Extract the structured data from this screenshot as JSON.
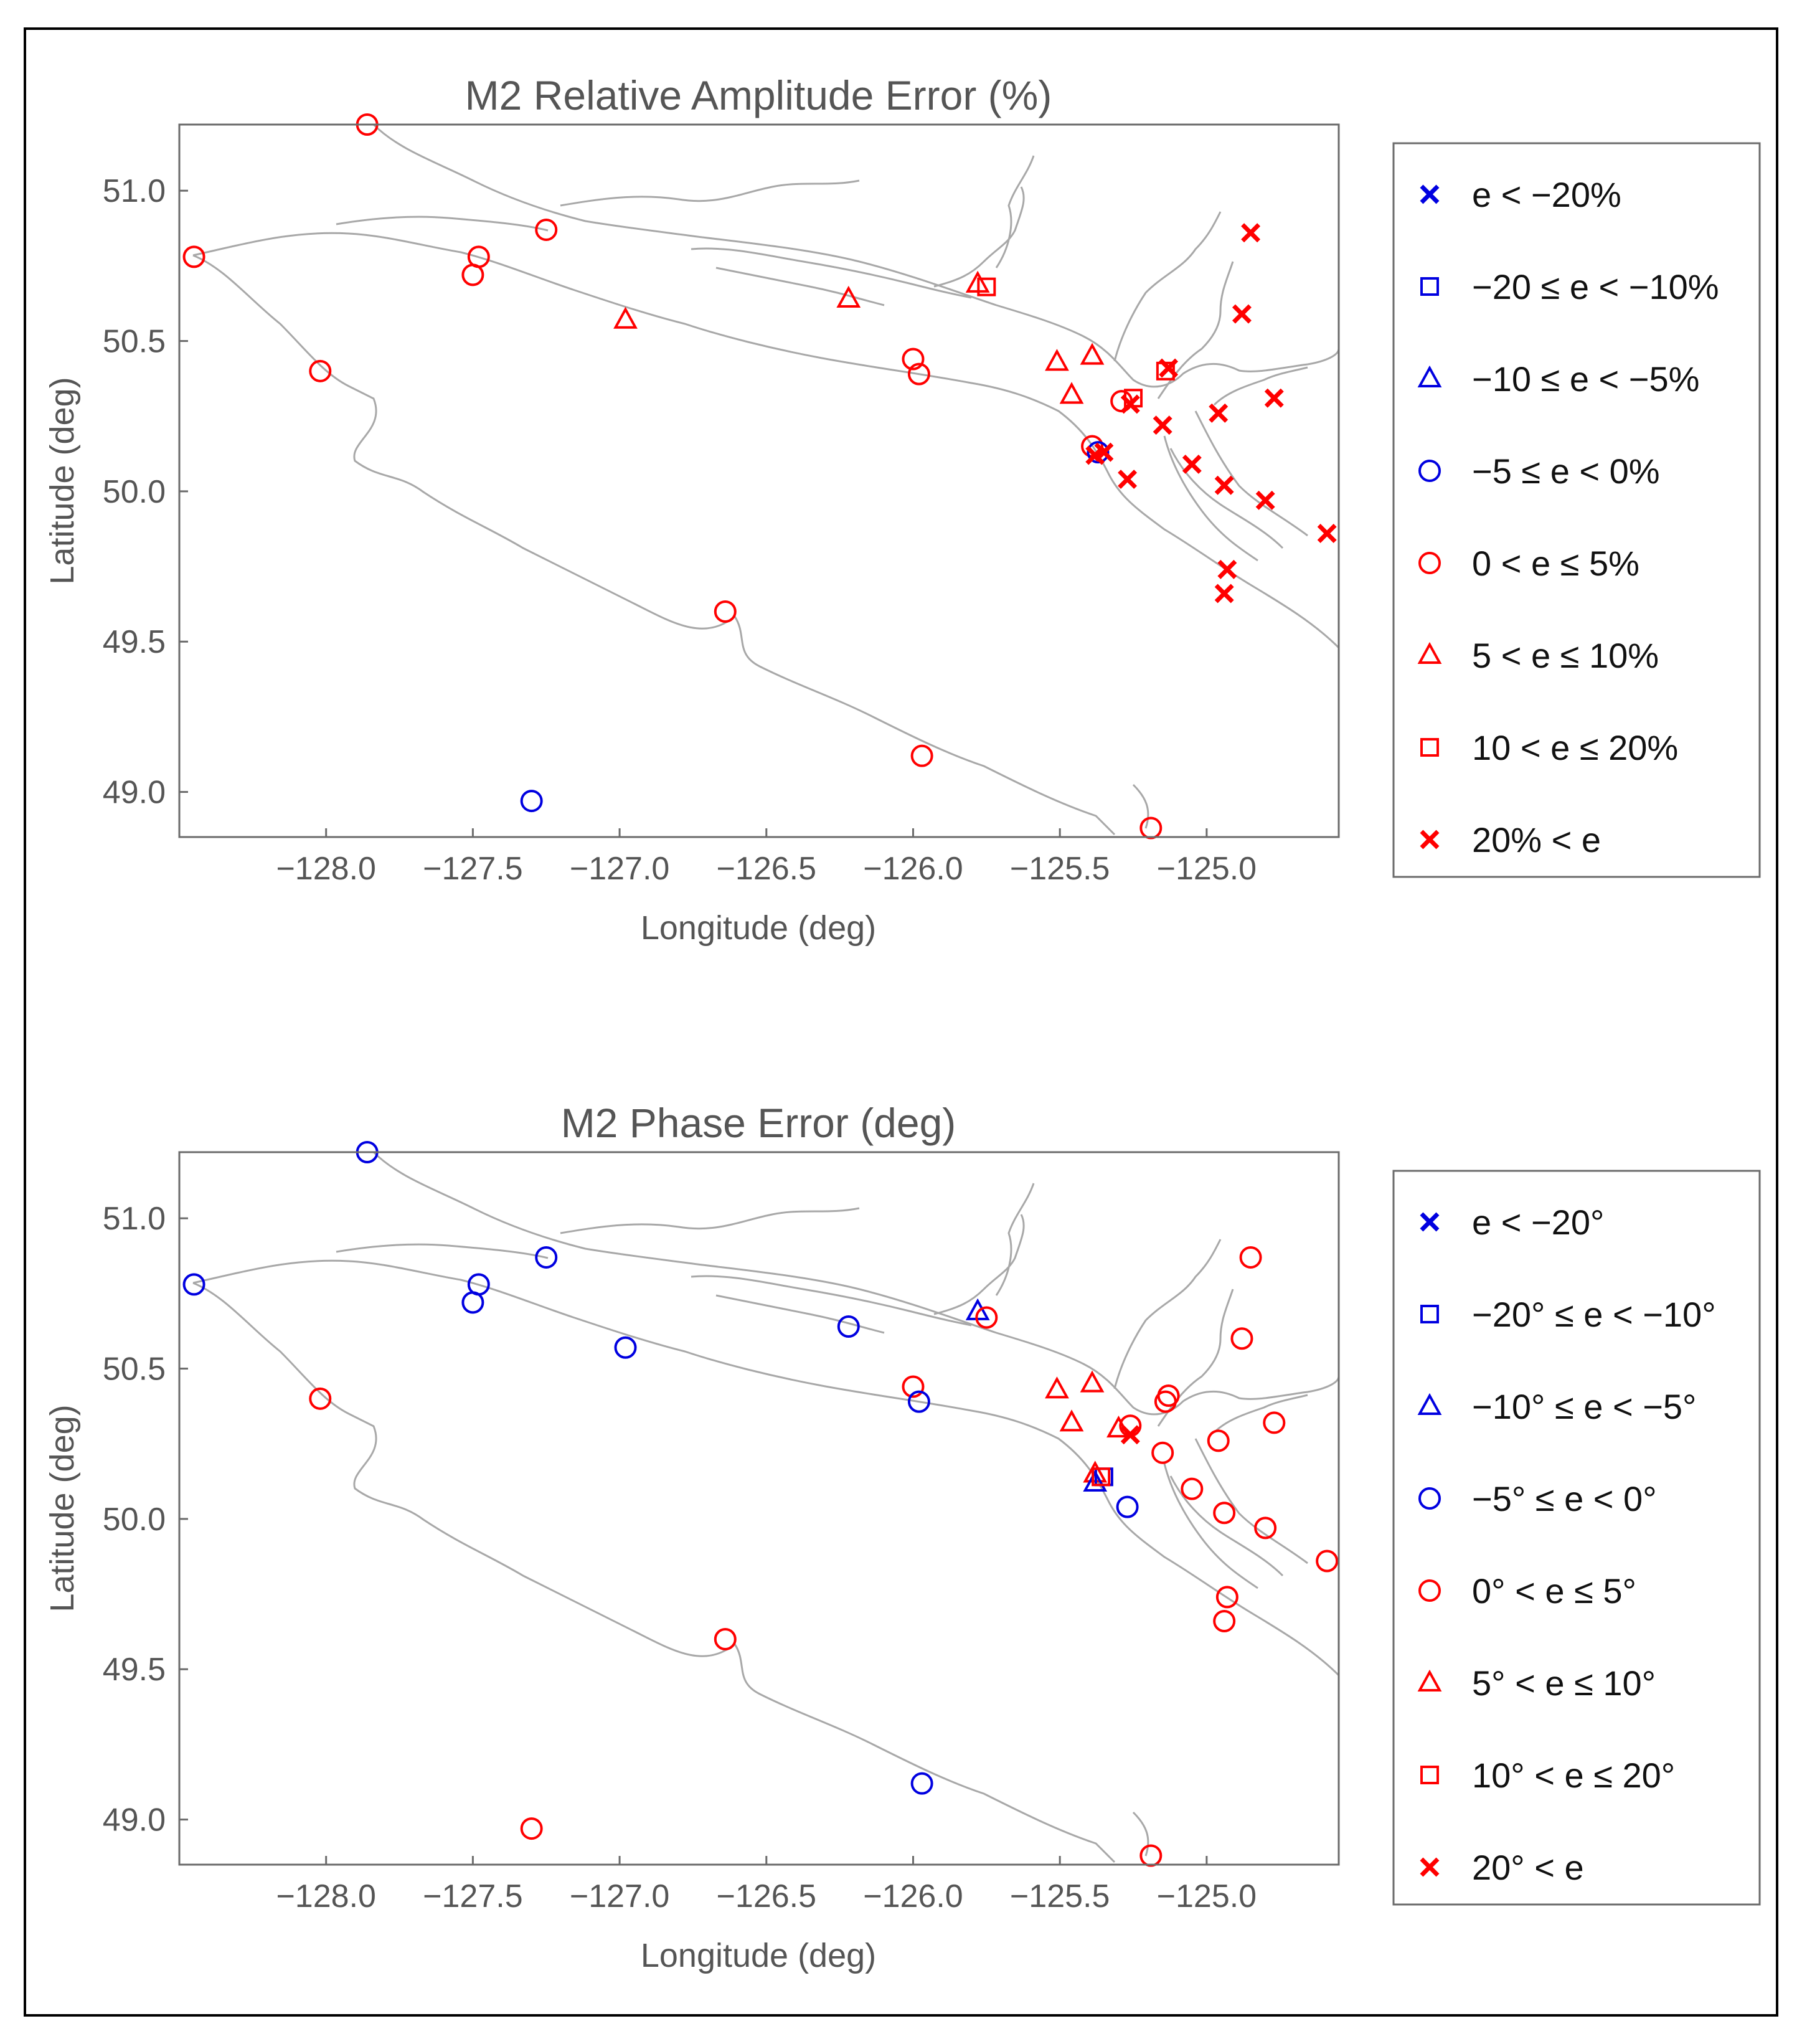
{
  "chart_data": [
    {
      "type": "scatter",
      "title": "M2 Relative Amplitude Error (%)",
      "xlabel": "Longitude (deg)",
      "ylabel": "Latitude (deg)",
      "xlim": [
        -128.5,
        -124.55
      ],
      "ylim": [
        48.85,
        51.22
      ],
      "xticks": [
        -128.0,
        -127.5,
        -127.0,
        -126.5,
        -126.0,
        -125.5,
        -125.0
      ],
      "xtick_labels": [
        "−128.0",
        "−127.5",
        "−127.0",
        "−126.5",
        "−126.0",
        "−125.5",
        "−125.0"
      ],
      "yticks": [
        49.0,
        49.5,
        50.0,
        50.5,
        51.0
      ],
      "ytick_labels": [
        "49.0",
        "49.5",
        "50.0",
        "50.5",
        "51.0"
      ],
      "grid": false,
      "legend_position": "right",
      "legend": [
        {
          "label": "e < −20%",
          "marker": "x",
          "color": "#0000e0"
        },
        {
          "label": "−20 ≤ e < −10%",
          "marker": "square",
          "color": "#0000e0"
        },
        {
          "label": "−10 ≤ e < −5%",
          "marker": "triangle",
          "color": "#0000e0"
        },
        {
          "label": "−5 ≤ e < 0%",
          "marker": "circle",
          "color": "#0000e0"
        },
        {
          "label": "0 < e ≤ 5%",
          "marker": "circle",
          "color": "#ff0000"
        },
        {
          "label": "5 < e ≤ 10%",
          "marker": "triangle",
          "color": "#ff0000"
        },
        {
          "label": "10 < e ≤ 20%",
          "marker": "square",
          "color": "#ff0000"
        },
        {
          "label": "20% < e",
          "marker": "x",
          "color": "#ff0000"
        }
      ],
      "points": [
        {
          "x": -127.86,
          "y": 51.22,
          "marker": "circle",
          "color": "#ff0000"
        },
        {
          "x": -128.45,
          "y": 50.78,
          "marker": "circle",
          "color": "#ff0000"
        },
        {
          "x": -127.5,
          "y": 50.72,
          "marker": "circle",
          "color": "#ff0000"
        },
        {
          "x": -127.48,
          "y": 50.78,
          "marker": "circle",
          "color": "#ff0000"
        },
        {
          "x": -127.25,
          "y": 50.87,
          "marker": "circle",
          "color": "#ff0000"
        },
        {
          "x": -128.02,
          "y": 50.4,
          "marker": "circle",
          "color": "#ff0000"
        },
        {
          "x": -126.98,
          "y": 50.57,
          "marker": "triangle",
          "color": "#ff0000"
        },
        {
          "x": -126.22,
          "y": 50.64,
          "marker": "triangle",
          "color": "#ff0000"
        },
        {
          "x": -125.78,
          "y": 50.69,
          "marker": "triangle",
          "color": "#ff0000"
        },
        {
          "x": -125.75,
          "y": 50.68,
          "marker": "square",
          "color": "#ff0000"
        },
        {
          "x": -126.0,
          "y": 50.44,
          "marker": "circle",
          "color": "#ff0000"
        },
        {
          "x": -125.98,
          "y": 50.39,
          "marker": "circle",
          "color": "#ff0000"
        },
        {
          "x": -125.51,
          "y": 50.43,
          "marker": "triangle",
          "color": "#ff0000"
        },
        {
          "x": -125.39,
          "y": 50.45,
          "marker": "triangle",
          "color": "#ff0000"
        },
        {
          "x": -125.46,
          "y": 50.32,
          "marker": "triangle",
          "color": "#ff0000"
        },
        {
          "x": -125.39,
          "y": 50.15,
          "marker": "circle",
          "color": "#ff0000"
        },
        {
          "x": -125.37,
          "y": 50.13,
          "marker": "circle",
          "color": "#0000e0"
        },
        {
          "x": -125.38,
          "y": 50.12,
          "marker": "x",
          "color": "#ff0000"
        },
        {
          "x": -125.35,
          "y": 50.13,
          "marker": "x",
          "color": "#ff0000"
        },
        {
          "x": -125.29,
          "y": 50.3,
          "marker": "circle",
          "color": "#ff0000"
        },
        {
          "x": -125.25,
          "y": 50.31,
          "marker": "square",
          "color": "#ff0000"
        },
        {
          "x": -125.26,
          "y": 50.29,
          "marker": "x",
          "color": "#ff0000"
        },
        {
          "x": -125.14,
          "y": 50.4,
          "marker": "square",
          "color": "#ff0000"
        },
        {
          "x": -125.13,
          "y": 50.41,
          "marker": "x",
          "color": "#ff0000"
        },
        {
          "x": -125.15,
          "y": 50.22,
          "marker": "x",
          "color": "#ff0000"
        },
        {
          "x": -125.27,
          "y": 50.04,
          "marker": "x",
          "color": "#ff0000"
        },
        {
          "x": -125.05,
          "y": 50.09,
          "marker": "x",
          "color": "#ff0000"
        },
        {
          "x": -124.96,
          "y": 50.26,
          "marker": "x",
          "color": "#ff0000"
        },
        {
          "x": -124.94,
          "y": 50.02,
          "marker": "x",
          "color": "#ff0000"
        },
        {
          "x": -124.88,
          "y": 50.59,
          "marker": "x",
          "color": "#ff0000"
        },
        {
          "x": -124.85,
          "y": 50.86,
          "marker": "x",
          "color": "#ff0000"
        },
        {
          "x": -124.77,
          "y": 50.31,
          "marker": "x",
          "color": "#ff0000"
        },
        {
          "x": -124.8,
          "y": 49.97,
          "marker": "x",
          "color": "#ff0000"
        },
        {
          "x": -124.59,
          "y": 49.86,
          "marker": "x",
          "color": "#ff0000"
        },
        {
          "x": -124.93,
          "y": 49.74,
          "marker": "x",
          "color": "#ff0000"
        },
        {
          "x": -124.94,
          "y": 49.66,
          "marker": "x",
          "color": "#ff0000"
        },
        {
          "x": -126.64,
          "y": 49.6,
          "marker": "circle",
          "color": "#ff0000"
        },
        {
          "x": -125.97,
          "y": 49.12,
          "marker": "circle",
          "color": "#ff0000"
        },
        {
          "x": -127.3,
          "y": 48.97,
          "marker": "circle",
          "color": "#0000e0"
        },
        {
          "x": -125.19,
          "y": 48.88,
          "marker": "circle",
          "color": "#ff0000"
        }
      ]
    },
    {
      "type": "scatter",
      "title": "M2 Phase Error (deg)",
      "xlabel": "Longitude (deg)",
      "ylabel": "Latitude (deg)",
      "xlim": [
        -128.5,
        -124.55
      ],
      "ylim": [
        48.85,
        51.22
      ],
      "xticks": [
        -128.0,
        -127.5,
        -127.0,
        -126.5,
        -126.0,
        -125.5,
        -125.0
      ],
      "xtick_labels": [
        "−128.0",
        "−127.5",
        "−127.0",
        "−126.5",
        "−126.0",
        "−125.5",
        "−125.0"
      ],
      "yticks": [
        49.0,
        49.5,
        50.0,
        50.5,
        51.0
      ],
      "ytick_labels": [
        "49.0",
        "49.5",
        "50.0",
        "50.5",
        "51.0"
      ],
      "grid": false,
      "legend_position": "right",
      "legend": [
        {
          "label": "e < −20°",
          "marker": "x",
          "color": "#0000e0"
        },
        {
          "label": "−20° ≤ e < −10°",
          "marker": "square",
          "color": "#0000e0"
        },
        {
          "label": "−10° ≤ e < −5°",
          "marker": "triangle",
          "color": "#0000e0"
        },
        {
          "label": "−5° ≤ e < 0°",
          "marker": "circle",
          "color": "#0000e0"
        },
        {
          "label": "0° < e ≤ 5°",
          "marker": "circle",
          "color": "#ff0000"
        },
        {
          "label": "5° < e ≤ 10°",
          "marker": "triangle",
          "color": "#ff0000"
        },
        {
          "label": "10° < e ≤ 20°",
          "marker": "square",
          "color": "#ff0000"
        },
        {
          "label": "20° < e",
          "marker": "x",
          "color": "#ff0000"
        }
      ],
      "points": [
        {
          "x": -127.86,
          "y": 51.22,
          "marker": "circle",
          "color": "#0000e0"
        },
        {
          "x": -128.45,
          "y": 50.78,
          "marker": "circle",
          "color": "#0000e0"
        },
        {
          "x": -127.5,
          "y": 50.72,
          "marker": "circle",
          "color": "#0000e0"
        },
        {
          "x": -127.48,
          "y": 50.78,
          "marker": "circle",
          "color": "#0000e0"
        },
        {
          "x": -127.25,
          "y": 50.87,
          "marker": "circle",
          "color": "#0000e0"
        },
        {
          "x": -128.02,
          "y": 50.4,
          "marker": "circle",
          "color": "#ff0000"
        },
        {
          "x": -126.98,
          "y": 50.57,
          "marker": "circle",
          "color": "#0000e0"
        },
        {
          "x": -126.22,
          "y": 50.64,
          "marker": "circle",
          "color": "#0000e0"
        },
        {
          "x": -125.78,
          "y": 50.69,
          "marker": "triangle",
          "color": "#0000e0"
        },
        {
          "x": -125.75,
          "y": 50.67,
          "marker": "circle",
          "color": "#ff0000"
        },
        {
          "x": -126.0,
          "y": 50.44,
          "marker": "circle",
          "color": "#ff0000"
        },
        {
          "x": -125.98,
          "y": 50.39,
          "marker": "circle",
          "color": "#0000e0"
        },
        {
          "x": -125.51,
          "y": 50.43,
          "marker": "triangle",
          "color": "#ff0000"
        },
        {
          "x": -125.39,
          "y": 50.45,
          "marker": "triangle",
          "color": "#ff0000"
        },
        {
          "x": -125.46,
          "y": 50.32,
          "marker": "triangle",
          "color": "#ff0000"
        },
        {
          "x": -125.38,
          "y": 50.15,
          "marker": "triangle",
          "color": "#ff0000"
        },
        {
          "x": -125.38,
          "y": 50.12,
          "marker": "triangle",
          "color": "#0000e0"
        },
        {
          "x": -125.35,
          "y": 50.14,
          "marker": "square",
          "color": "#0000e0"
        },
        {
          "x": -125.36,
          "y": 50.14,
          "marker": "square",
          "color": "#ff0000"
        },
        {
          "x": -125.3,
          "y": 50.3,
          "marker": "triangle",
          "color": "#ff0000"
        },
        {
          "x": -125.26,
          "y": 50.31,
          "marker": "circle",
          "color": "#ff0000"
        },
        {
          "x": -125.26,
          "y": 50.28,
          "marker": "x",
          "color": "#ff0000"
        },
        {
          "x": -125.14,
          "y": 50.39,
          "marker": "circle",
          "color": "#ff0000"
        },
        {
          "x": -125.13,
          "y": 50.41,
          "marker": "circle",
          "color": "#ff0000"
        },
        {
          "x": -125.15,
          "y": 50.22,
          "marker": "circle",
          "color": "#ff0000"
        },
        {
          "x": -125.27,
          "y": 50.04,
          "marker": "circle",
          "color": "#0000e0"
        },
        {
          "x": -125.05,
          "y": 50.1,
          "marker": "circle",
          "color": "#ff0000"
        },
        {
          "x": -124.96,
          "y": 50.26,
          "marker": "circle",
          "color": "#ff0000"
        },
        {
          "x": -124.94,
          "y": 50.02,
          "marker": "circle",
          "color": "#ff0000"
        },
        {
          "x": -124.88,
          "y": 50.6,
          "marker": "circle",
          "color": "#ff0000"
        },
        {
          "x": -124.85,
          "y": 50.87,
          "marker": "circle",
          "color": "#ff0000"
        },
        {
          "x": -124.77,
          "y": 50.32,
          "marker": "circle",
          "color": "#ff0000"
        },
        {
          "x": -124.8,
          "y": 49.97,
          "marker": "circle",
          "color": "#ff0000"
        },
        {
          "x": -124.59,
          "y": 49.86,
          "marker": "circle",
          "color": "#ff0000"
        },
        {
          "x": -124.93,
          "y": 49.74,
          "marker": "circle",
          "color": "#ff0000"
        },
        {
          "x": -124.94,
          "y": 49.66,
          "marker": "circle",
          "color": "#ff0000"
        },
        {
          "x": -126.64,
          "y": 49.6,
          "marker": "circle",
          "color": "#ff0000"
        },
        {
          "x": -125.97,
          "y": 49.12,
          "marker": "circle",
          "color": "#0000e0"
        },
        {
          "x": -127.3,
          "y": 48.97,
          "marker": "circle",
          "color": "#ff0000"
        },
        {
          "x": -125.19,
          "y": 48.88,
          "marker": "circle",
          "color": "#ff0000"
        }
      ]
    }
  ]
}
